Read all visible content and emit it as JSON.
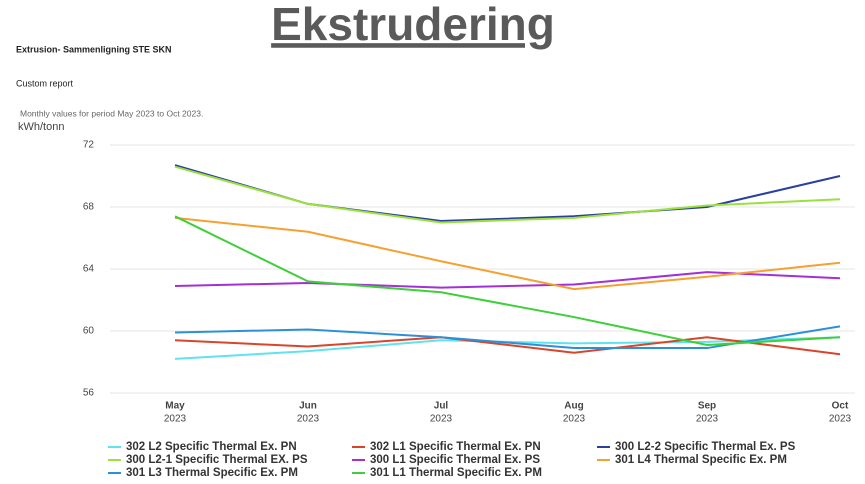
{
  "page_title": "Ekstrudering",
  "chart_data": {
    "type": "line",
    "title": "Extrusion- Sammenligning STE SKN",
    "subtitle": "Custom report",
    "note": "Monthly values for period May 2023 to Oct 2023.",
    "y_label": "kWh/tonn",
    "categories": [
      [
        "May",
        "2023"
      ],
      [
        "Jun",
        "2023"
      ],
      [
        "Jul",
        "2023"
      ],
      [
        "Aug",
        "2023"
      ],
      [
        "Sep",
        "2023"
      ],
      [
        "Oct",
        "2023"
      ]
    ],
    "ylim": [
      56,
      72
    ],
    "yticks": [
      56,
      60,
      64,
      68,
      72
    ],
    "grid": true,
    "series": [
      {
        "name": "302 L2 Specific Thermal Ex. PN",
        "color": "#5fe3ee",
        "values": [
          58.2,
          58.7,
          59.4,
          59.2,
          59.3,
          59.6
        ]
      },
      {
        "name": "302 L1 Specific Thermal Ex. PN",
        "color": "#d9442a",
        "values": [
          59.4,
          59.0,
          59.6,
          58.6,
          59.6,
          58.5
        ]
      },
      {
        "name": "300 L2-2 Specific Thermal Ex. PS",
        "color": "#2a3f9e",
        "values": [
          70.7,
          68.2,
          67.1,
          67.4,
          68.0,
          70.0
        ]
      },
      {
        "name": "300 L2-1 Specific Thermal EX. PS",
        "color": "#9be03c",
        "values": [
          70.6,
          68.2,
          67.0,
          67.3,
          68.1,
          68.5
        ]
      },
      {
        "name": "300 L1 Specific Thermal Ex. PS",
        "color": "#a32fd6",
        "values": [
          62.9,
          63.1,
          62.8,
          63.0,
          63.8,
          63.4
        ]
      },
      {
        "name": "301 L4 Thermal Specific Ex. PM",
        "color": "#f5a031",
        "values": [
          67.3,
          66.4,
          64.5,
          62.7,
          63.5,
          64.4
        ]
      },
      {
        "name": "301 L3 Thermal Specific Ex. PM",
        "color": "#2e8fd9",
        "values": [
          59.9,
          60.1,
          59.6,
          58.9,
          58.9,
          60.3
        ]
      },
      {
        "name": "301 L1 Thermal Specific Ex. PM",
        "color": "#3ecf3a",
        "values": [
          67.4,
          63.2,
          62.5,
          60.9,
          59.1,
          59.6
        ]
      }
    ]
  }
}
